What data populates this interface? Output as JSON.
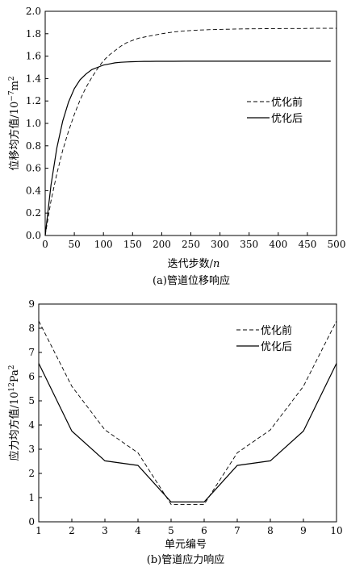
{
  "chart_data": [
    {
      "type": "line",
      "caption": "(a)管道位移响应",
      "xlabel_text": "迭代步数/",
      "xlabel_var": "n",
      "ylabel_text": "位移均方值/10",
      "ylabel_exp": "−7",
      "ylabel_unit": "m",
      "ylabel_unit_exp": "2",
      "xlim": [
        0,
        500
      ],
      "ylim": [
        0,
        2.0
      ],
      "xticks": [
        "0",
        "50",
        "100",
        "150",
        "200",
        "250",
        "300",
        "350",
        "400",
        "450",
        "500"
      ],
      "yticks": [
        "0.0",
        "0.2",
        "0.4",
        "0.6",
        "0.8",
        "1.0",
        "1.2",
        "1.4",
        "1.6",
        "1.8",
        "2.0"
      ],
      "legend_position": "right",
      "series": [
        {
          "name": "优化前",
          "style": "dashed",
          "x": [
            0,
            10,
            20,
            30,
            40,
            50,
            60,
            70,
            80,
            90,
            100,
            110,
            120,
            130,
            140,
            150,
            160,
            170,
            180,
            190,
            200,
            220,
            240,
            260,
            280,
            300,
            320,
            340,
            360,
            380,
            400,
            420,
            440,
            460,
            480,
            500
          ],
          "y": [
            0,
            0.31,
            0.55,
            0.76,
            0.93,
            1.08,
            1.21,
            1.32,
            1.41,
            1.49,
            1.56,
            1.61,
            1.65,
            1.69,
            1.72,
            1.74,
            1.76,
            1.77,
            1.78,
            1.79,
            1.8,
            1.815,
            1.825,
            1.832,
            1.836,
            1.839,
            1.841,
            1.843,
            1.844,
            1.845,
            1.846,
            1.847,
            1.847,
            1.848,
            1.848,
            1.848
          ]
        },
        {
          "name": "优化后",
          "style": "solid",
          "x": [
            0,
            10,
            20,
            30,
            40,
            50,
            60,
            70,
            80,
            90,
            100,
            110,
            120,
            130,
            140,
            150,
            160,
            170,
            180,
            190,
            200,
            220,
            240,
            260,
            280,
            300,
            320,
            340,
            360,
            380,
            400,
            420,
            440,
            460,
            480,
            490
          ],
          "y": [
            0,
            0.45,
            0.78,
            1.02,
            1.19,
            1.31,
            1.39,
            1.44,
            1.48,
            1.5,
            1.52,
            1.53,
            1.54,
            1.545,
            1.548,
            1.55,
            1.552,
            1.553,
            1.553,
            1.554,
            1.554,
            1.554,
            1.555,
            1.555,
            1.555,
            1.555,
            1.555,
            1.555,
            1.555,
            1.555,
            1.555,
            1.555,
            1.555,
            1.555,
            1.555,
            1.555
          ]
        }
      ]
    },
    {
      "type": "line",
      "caption": "(b)管道应力响应",
      "xlabel": "单元编号",
      "ylabel_text": "应力均方值/10",
      "ylabel_exp": "12",
      "ylabel_unit": "Pa",
      "ylabel_unit_exp": "2",
      "xlim": [
        1,
        10
      ],
      "ylim": [
        0,
        9
      ],
      "xticks": [
        "1",
        "2",
        "3",
        "4",
        "5",
        "6",
        "7",
        "8",
        "9",
        "10"
      ],
      "yticks": [
        "0",
        "1",
        "2",
        "3",
        "4",
        "5",
        "6",
        "7",
        "8",
        "9"
      ],
      "legend_position": "top-right",
      "series": [
        {
          "name": "优化前",
          "style": "dashed",
          "x": [
            1,
            2,
            3,
            4,
            5,
            6,
            7,
            8,
            9,
            10
          ],
          "y": [
            8.3,
            5.6,
            3.8,
            2.85,
            0.72,
            0.72,
            2.85,
            3.8,
            5.6,
            8.3
          ]
        },
        {
          "name": "优化后",
          "style": "solid",
          "x": [
            1,
            2,
            3,
            4,
            5,
            6,
            7,
            8,
            9,
            10
          ],
          "y": [
            6.55,
            3.75,
            2.52,
            2.33,
            0.82,
            0.82,
            2.33,
            2.52,
            3.75,
            6.55
          ]
        }
      ]
    }
  ]
}
